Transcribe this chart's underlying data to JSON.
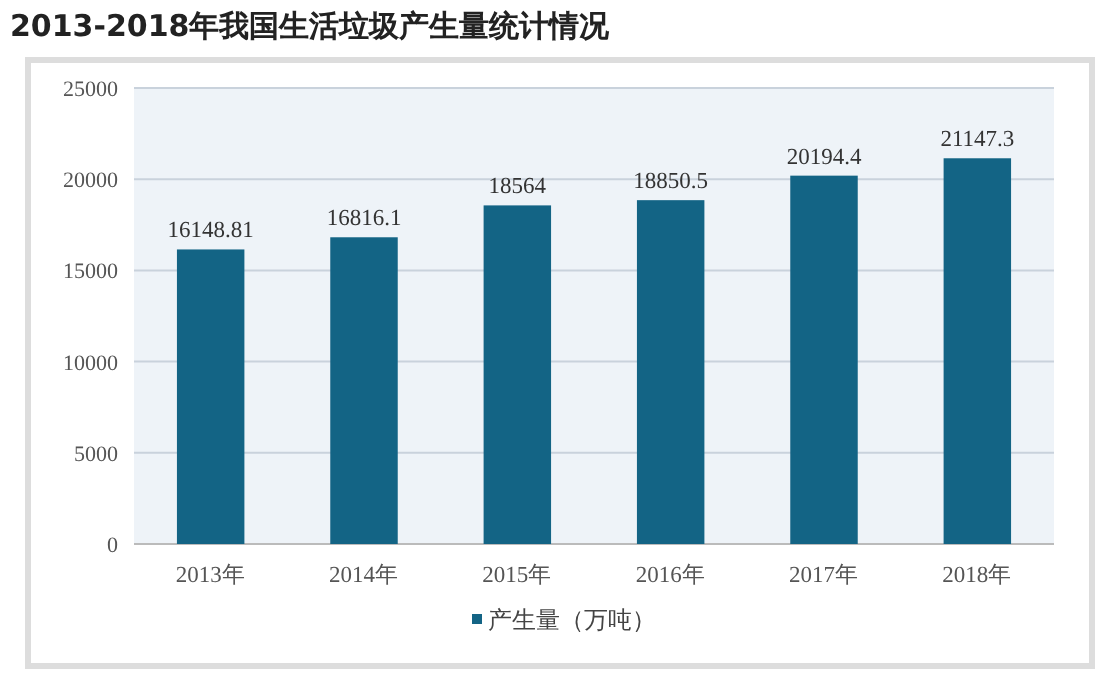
{
  "chart_data": {
    "type": "bar",
    "title": "2013-2018年我国生活垃圾产生量统计情况",
    "categories": [
      "2013年",
      "2014年",
      "2015年",
      "2016年",
      "2017年",
      "2018年"
    ],
    "series": [
      {
        "name": "产生量（万吨）",
        "color": "#136485",
        "values": [
          16148.81,
          16816.1,
          18564,
          18850.5,
          20194.4,
          21147.3
        ]
      }
    ],
    "ylim": [
      0,
      25000
    ],
    "yticks": [
      0,
      5000,
      10000,
      15000,
      20000,
      25000
    ],
    "grid": "y",
    "legend": "bottom",
    "data_labels": true
  }
}
